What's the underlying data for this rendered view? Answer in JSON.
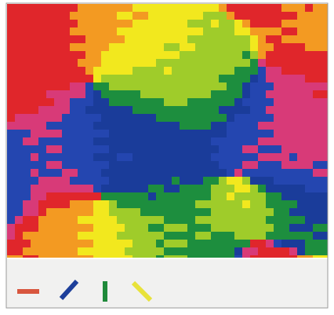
{
  "legend": {
    "items": [
      {
        "color": "#d8563e"
      },
      {
        "color": "#1d3f9a"
      },
      {
        "color": "#1f8a3a"
      },
      {
        "color": "#e8e23a"
      }
    ]
  }
}
